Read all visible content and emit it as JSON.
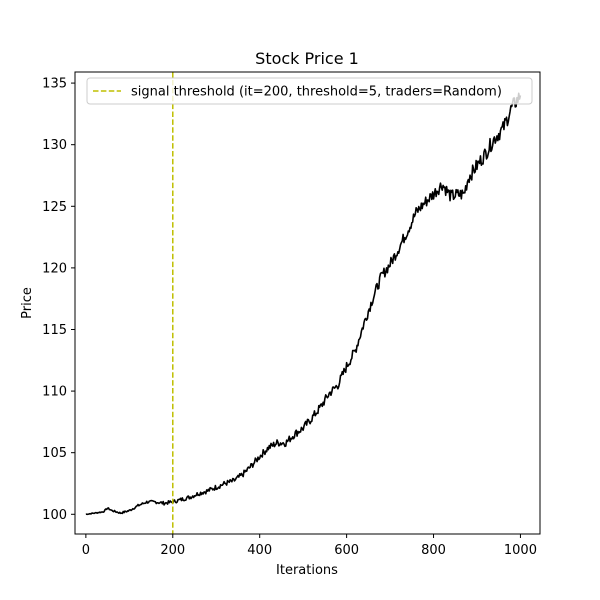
{
  "chart_data": {
    "type": "line",
    "title": "Stock Price 1",
    "xlabel": "Iterations",
    "ylabel": "Price",
    "xlim": [
      -25,
      1045
    ],
    "ylim": [
      98.4,
      135.9
    ],
    "xticks": [
      0,
      200,
      400,
      600,
      800,
      1000
    ],
    "yticks": [
      100,
      105,
      110,
      115,
      120,
      125,
      130,
      135
    ],
    "grid": false,
    "legend": {
      "location": "top-right",
      "entries": [
        "signal threshold (it=200, threshold=5, traders=Random)"
      ]
    },
    "series": [
      {
        "color": "#000000",
        "x": [
          0,
          20,
          40,
          50,
          60,
          80,
          100,
          120,
          140,
          160,
          180,
          200,
          220,
          240,
          260,
          280,
          300,
          320,
          340,
          360,
          380,
          400,
          420,
          440,
          460,
          480,
          500,
          520,
          540,
          560,
          580,
          600,
          620,
          640,
          660,
          680,
          700,
          720,
          740,
          760,
          780,
          800,
          820,
          830,
          840,
          850,
          870,
          880,
          900,
          920,
          940,
          960,
          980,
          1000
        ],
        "y": [
          100.0,
          100.1,
          100.2,
          100.5,
          100.3,
          100.1,
          100.3,
          100.7,
          101.0,
          101.0,
          100.9,
          101.0,
          101.2,
          101.4,
          101.7,
          101.9,
          102.2,
          102.5,
          102.7,
          103.2,
          103.9,
          104.7,
          105.4,
          105.8,
          105.8,
          106.5,
          107.0,
          107.8,
          108.7,
          109.8,
          110.5,
          112.0,
          113.3,
          115.5,
          117.5,
          119.3,
          120.3,
          121.6,
          123.0,
          124.5,
          125.3,
          126.0,
          126.8,
          126.3,
          125.8,
          125.9,
          126.0,
          127.3,
          128.3,
          129.3,
          130.5,
          131.3,
          133.0,
          134.0
        ]
      },
      {
        "name": "signal threshold (it=200, threshold=5, traders=Random)",
        "type": "vline",
        "x": 200,
        "color": "#bfbf00",
        "style": "dashed"
      }
    ]
  }
}
